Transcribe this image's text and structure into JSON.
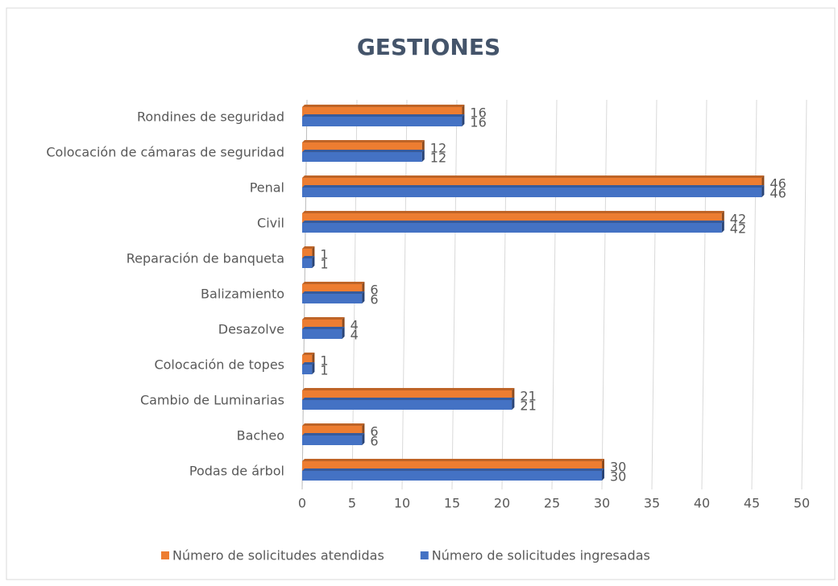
{
  "chart_data": {
    "type": "bar",
    "orientation": "horizontal",
    "title": "GESTIONES",
    "categories": [
      "Rondines de seguridad",
      "Colocación de cámaras de seguridad",
      "Penal",
      "Civil",
      "Reparación de banqueta",
      "Balizamiento",
      "Desazolve",
      "Colocación de topes",
      "Cambio de Luminarias",
      "Bacheo",
      "Podas de árbol"
    ],
    "series": [
      {
        "name": "Número de solicitudes atendidas",
        "color": "#ed7d31",
        "values": [
          16,
          12,
          46,
          42,
          1,
          6,
          4,
          1,
          21,
          6,
          30
        ]
      },
      {
        "name": "Número de solicitudes ingresadas",
        "color": "#4472c4",
        "values": [
          16,
          12,
          46,
          42,
          1,
          6,
          4,
          1,
          21,
          6,
          30
        ]
      }
    ],
    "xlim": [
      0,
      50
    ],
    "xticks": [
      0,
      5,
      10,
      15,
      20,
      25,
      30,
      35,
      40,
      45,
      50
    ],
    "grid": true,
    "legend": "bottom"
  }
}
